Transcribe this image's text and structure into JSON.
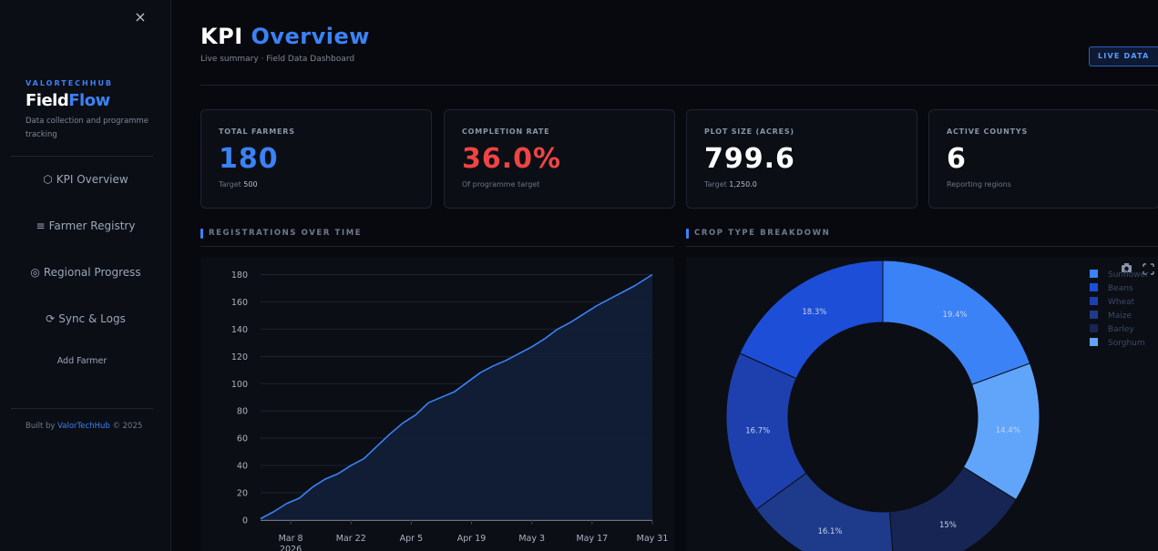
{
  "sidebar": {
    "close_icon": "×",
    "brand_kicker": "VALORTECHHUB",
    "brand_name_white": "Field",
    "brand_name_blue": "Flow",
    "brand_desc": "Data collection and programme tracking",
    "nav": [
      {
        "icon": "⬡",
        "icon_name": "hexagon-icon",
        "label": "KPI Overview"
      },
      {
        "icon": "≡",
        "icon_name": "list-icon",
        "label": "Farmer Registry"
      },
      {
        "icon": "◎",
        "icon_name": "target-icon",
        "label": "Regional Progress"
      },
      {
        "icon": "⟳",
        "icon_name": "sync-icon",
        "label": "Sync & Logs"
      }
    ],
    "add_farmer": "Add Farmer",
    "footer_prefix": "Built by ",
    "footer_link": "ValorTechHub",
    "footer_suffix": " © 2025"
  },
  "header": {
    "title_white": "KPI ",
    "title_blue": "Overview",
    "subtitle": "Live summary · Field Data Dashboard",
    "badge": "LIVE DATA"
  },
  "kpis": [
    {
      "label": "Total Farmers",
      "value": "180",
      "sub_prefix": "Target ",
      "sub_value": "500",
      "color": "#3b82f6"
    },
    {
      "label": "Completion Rate",
      "value": "36.0%",
      "sub_prefix": "Of programme target",
      "sub_value": "",
      "color": "#ef4444"
    },
    {
      "label": "Plot Size (Acres)",
      "value": "799.6",
      "sub_prefix": "Target ",
      "sub_value": "1,250.0",
      "color": "#ffffff"
    },
    {
      "label": "Active Countys",
      "value": "6",
      "sub_prefix": "Reporting regions",
      "sub_value": "",
      "color": "#ffffff"
    }
  ],
  "sections": {
    "registrations": "REGISTRATIONS OVER TIME",
    "crop": "CROP TYPE BREAKDOWN"
  },
  "chart_data": [
    {
      "type": "line",
      "title": "REGISTRATIONS OVER TIME",
      "x_start": "2026-03-01",
      "x_end": "2026-05-31",
      "x_ticks": [
        "Mar 8",
        "Mar 22",
        "Apr 5",
        "Apr 19",
        "May 3",
        "May 17",
        "May 31"
      ],
      "x_tick_year": "2026",
      "ylim": [
        0,
        185
      ],
      "y_ticks": [
        0,
        20,
        40,
        60,
        80,
        100,
        120,
        140,
        160,
        180
      ],
      "grid": true,
      "line_color": "#3b82f6",
      "fill": true,
      "series": [
        {
          "x": [
            "2026-03-01",
            "2026-03-04",
            "2026-03-07",
            "2026-03-10",
            "2026-03-13",
            "2026-03-16",
            "2026-03-19",
            "2026-03-22",
            "2026-03-25",
            "2026-03-28",
            "2026-03-31",
            "2026-04-03",
            "2026-04-06",
            "2026-04-09",
            "2026-04-12",
            "2026-04-15",
            "2026-04-18",
            "2026-04-21",
            "2026-04-24",
            "2026-04-27",
            "2026-04-30",
            "2026-05-03",
            "2026-05-06",
            "2026-05-09",
            "2026-05-12",
            "2026-05-15",
            "2026-05-18",
            "2026-05-21",
            "2026-05-24",
            "2026-05-27",
            "2026-05-31"
          ],
          "y": [
            1,
            6,
            12,
            16,
            24,
            30,
            34,
            40,
            45,
            54,
            63,
            71,
            77,
            86,
            90,
            94,
            101,
            108,
            113,
            117,
            122,
            127,
            133,
            140,
            145,
            151,
            157,
            162,
            167,
            172,
            180
          ]
        }
      ]
    },
    {
      "type": "pie",
      "donut": true,
      "title": "CROP TYPE BREAKDOWN",
      "legend_position": "top-right",
      "categories": [
        "Sunflower",
        "Beans",
        "Wheat",
        "Maize",
        "Barley",
        "Sorghum"
      ],
      "values": [
        19.4,
        14.4,
        15,
        16.1,
        16.7,
        18.3
      ],
      "colors": [
        "#3b82f6",
        "#60a5fa",
        "#172554",
        "#1e3a8a",
        "#1e40af",
        "#1d4ed8"
      ],
      "labels": [
        "19.4%",
        "14.4%",
        "15%",
        "16.1%",
        "16.7%",
        "18.3%"
      ],
      "legend_colors": [
        "#3b82f6",
        "#1d4ed8",
        "#1e40af",
        "#1e3a8a",
        "#172554",
        "#60a5fa"
      ]
    }
  ]
}
